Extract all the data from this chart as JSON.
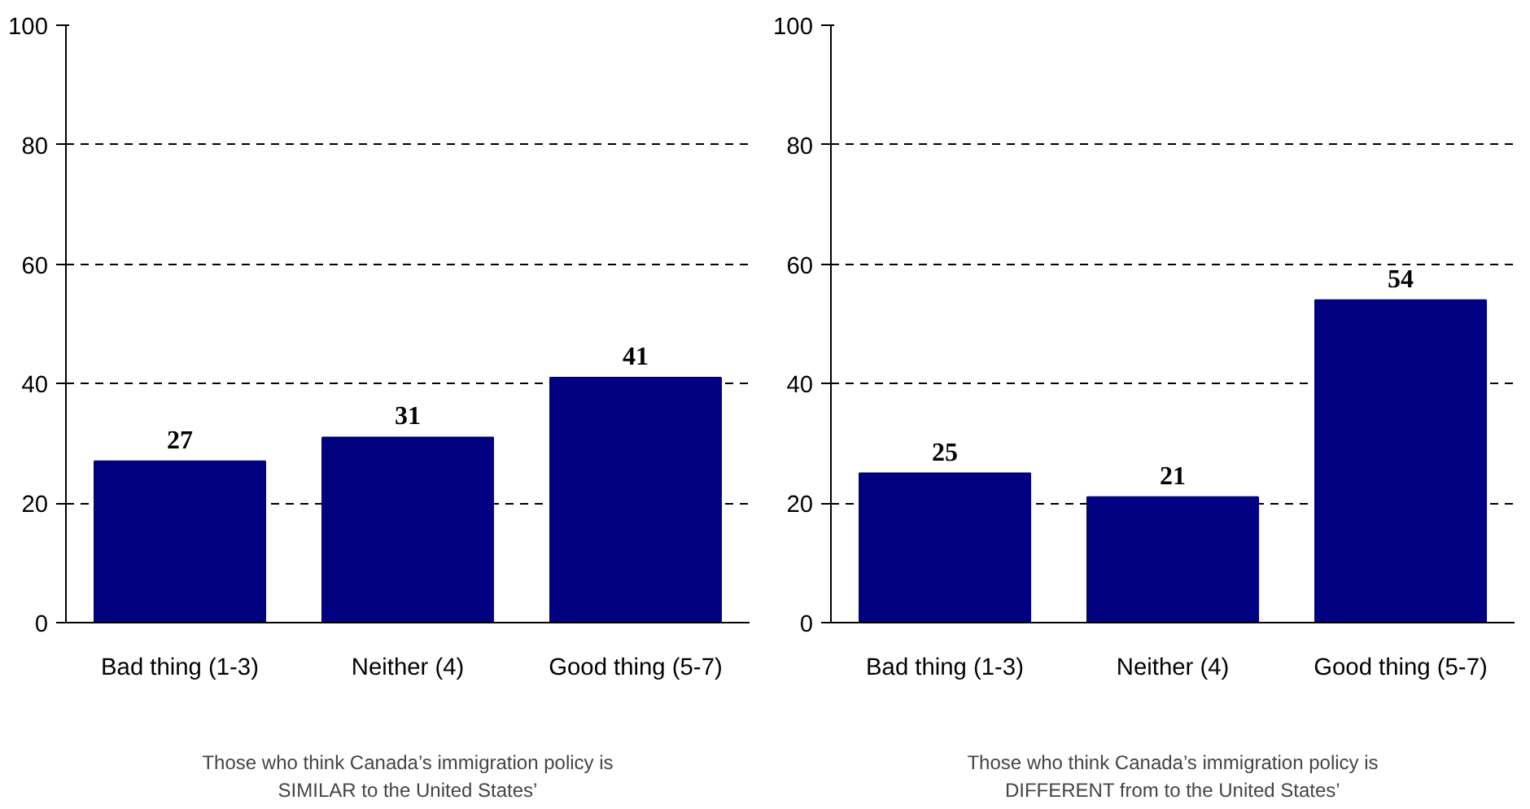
{
  "chart_data": [
    {
      "type": "bar",
      "categories": [
        "Bad thing (1-3)",
        "Neither (4)",
        "Good thing (5-7)"
      ],
      "values": [
        27,
        31,
        41
      ],
      "color": "#000080",
      "ylim": [
        0,
        100
      ],
      "yticks": [
        0,
        20,
        40,
        60,
        80,
        100
      ],
      "grid": "y",
      "data_labels": true,
      "xlabel": "Those who think Canada’s immigration policy is\nSIMILAR to the United States’"
    },
    {
      "type": "bar",
      "categories": [
        "Bad thing (1-3)",
        "Neither (4)",
        "Good thing (5-7)"
      ],
      "values": [
        25,
        21,
        54
      ],
      "color": "#000080",
      "ylim": [
        0,
        100
      ],
      "yticks": [
        0,
        20,
        40,
        60,
        80,
        100
      ],
      "grid": "y",
      "data_labels": true,
      "xlabel": "Those who think Canada’s immigration policy is\nDIFFERENT from to the United States’"
    }
  ]
}
